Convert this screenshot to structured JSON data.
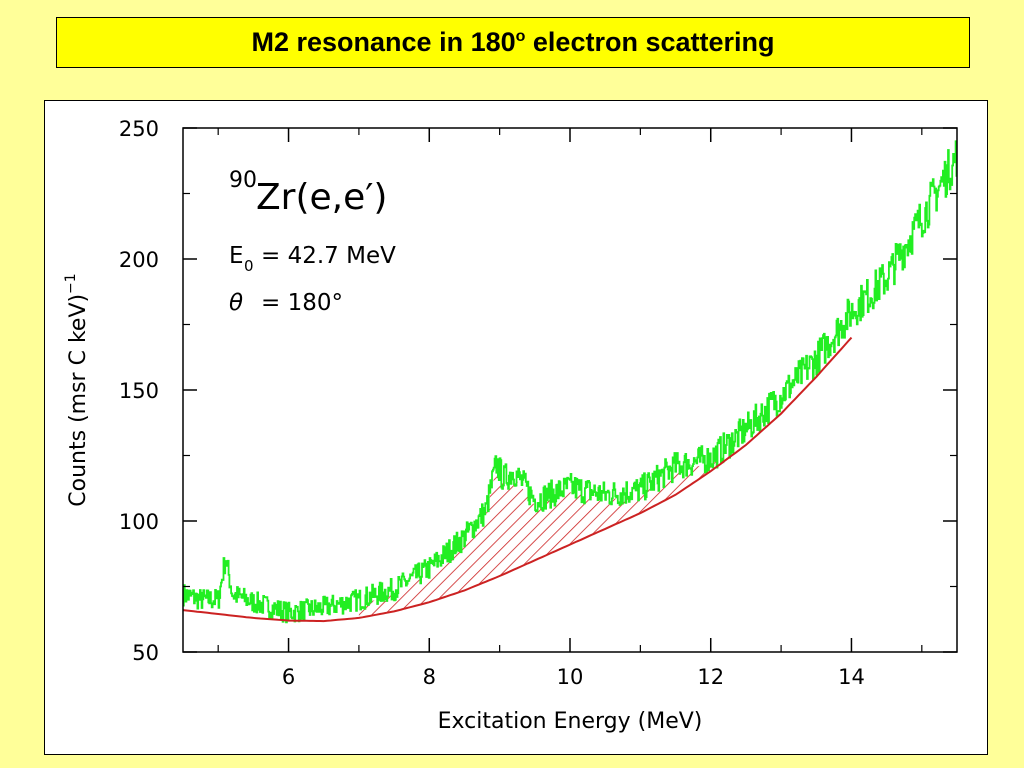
{
  "slide": {
    "title_main": "M2 resonance in 180",
    "title_sup": "o",
    "title_rest": " electron scattering"
  },
  "chart_data": {
    "type": "line",
    "title": "",
    "xlabel": "Excitation Energy  (MeV)",
    "ylabel": "Counts  (msr C keV)",
    "ylabel_sup": "−1",
    "xlim": [
      4.5,
      15.5
    ],
    "ylim": [
      50,
      250
    ],
    "xticks": [
      6,
      8,
      10,
      12,
      14
    ],
    "yticks": [
      50,
      100,
      150,
      200,
      250
    ],
    "annotations": {
      "reaction_sup": "90",
      "reaction_main": "Zr(e,e′)",
      "energy_symbol": "E",
      "energy_sub": "0",
      "energy_value": "= 42.7 MeV",
      "angle_symbol": "θ",
      "angle_value": "= 180°"
    },
    "series": [
      {
        "kind": "spectrum",
        "color": "#22ee22",
        "x": [
          4.5,
          4.75,
          5.0,
          5.1,
          5.2,
          5.5,
          6.0,
          6.5,
          7.0,
          7.5,
          8.0,
          8.5,
          8.8,
          8.95,
          9.05,
          9.2,
          9.5,
          10.0,
          10.5,
          11.0,
          11.5,
          12.0,
          12.5,
          13.0,
          13.5,
          14.0,
          14.5,
          15.0,
          15.3,
          15.5
        ],
        "y": [
          72,
          70,
          70,
          86,
          72,
          69,
          65,
          67,
          70,
          74,
          82,
          94,
          104,
          122,
          116,
          119,
          108,
          113,
          110,
          112,
          121,
          124,
          135,
          148,
          162,
          180,
          193,
          216,
          230,
          240
        ]
      },
      {
        "kind": "background",
        "color": "#cc2222",
        "x": [
          4.5,
          5.0,
          5.5,
          6.0,
          6.5,
          7.0,
          7.5,
          8.0,
          8.5,
          9.0,
          9.5,
          10.0,
          10.5,
          11.0,
          11.5,
          12.0,
          12.5,
          13.0,
          13.5,
          14.0
        ],
        "y": [
          66,
          64.5,
          63,
          62,
          61.8,
          63,
          65.5,
          69,
          73.5,
          79,
          85,
          91,
          97,
          103,
          110,
          119,
          129,
          141,
          155,
          170
        ]
      }
    ],
    "hatched_region": {
      "color": "#cc2222",
      "x_range": [
        7.0,
        12.1
      ]
    }
  }
}
